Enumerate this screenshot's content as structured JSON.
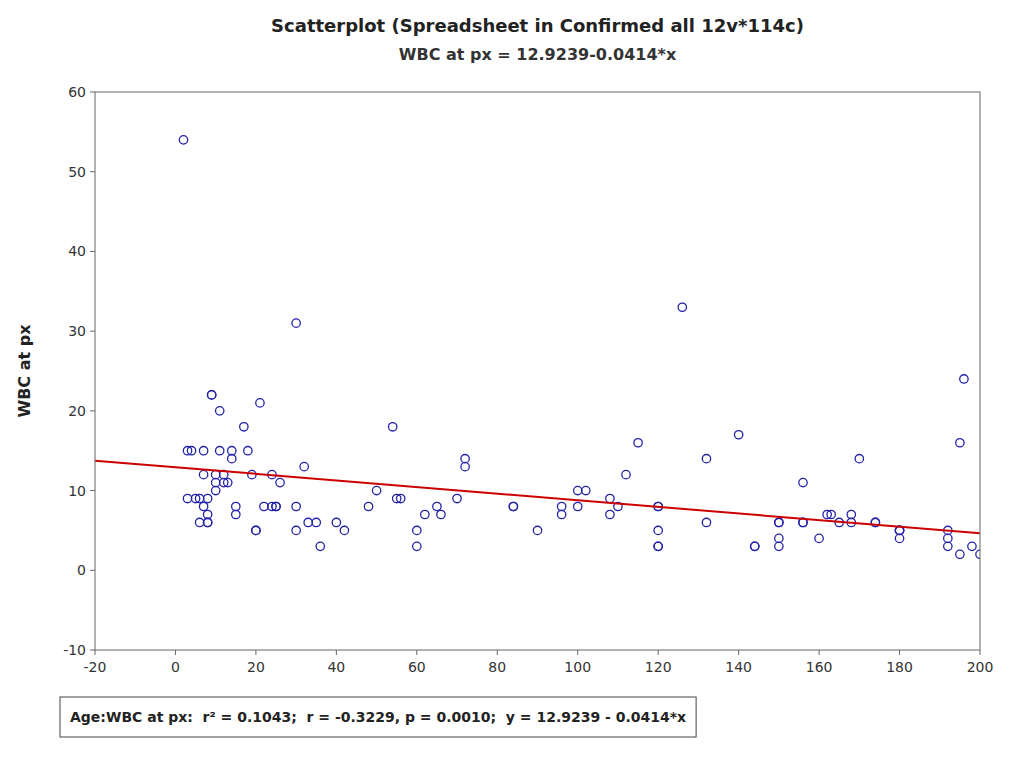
{
  "chart_data": {
    "type": "scatter",
    "title": "Scatterplot (Spreadsheet in Confirmed all 12v*114c)",
    "subtitle": "WBC at px = 12.9239-0.0414*x",
    "y_label": "WBC at px",
    "annotation": "Age:WBC at px:  r² = 0.1043;  r = -0.3229, p = 0.0010;  y = 12.9239 - 0.0414*x",
    "xlim": [
      -20,
      200
    ],
    "ylim": [
      -10,
      60
    ],
    "xticks": [
      -20,
      0,
      20,
      40,
      60,
      80,
      100,
      120,
      140,
      160,
      180,
      200
    ],
    "yticks": [
      -10,
      0,
      10,
      20,
      30,
      40,
      50,
      60
    ],
    "grid": false,
    "series": [
      {
        "type": "scatter",
        "color": "#2222aa",
        "marker": "circle",
        "x": [
          2,
          3,
          3,
          4,
          5,
          6,
          6,
          7,
          7,
          7,
          8,
          8,
          8,
          8,
          9,
          9,
          10,
          10,
          10,
          11,
          11,
          12,
          12,
          13,
          14,
          14,
          15,
          15,
          17,
          18,
          19,
          20,
          20,
          21,
          22,
          24,
          24,
          25,
          25,
          26,
          30,
          30,
          30,
          32,
          33,
          35,
          36,
          40,
          42,
          48,
          50,
          54,
          55,
          56,
          60,
          60,
          62,
          65,
          66,
          70,
          72,
          72,
          84,
          84,
          90,
          96,
          96,
          100,
          100,
          102,
          108,
          108,
          110,
          112,
          115,
          120,
          120,
          120,
          120,
          120,
          126,
          132,
          132,
          140,
          144,
          144,
          150,
          150,
          150,
          150,
          156,
          156,
          156,
          160,
          162,
          163,
          165,
          168,
          168,
          170,
          174,
          174,
          180,
          180,
          180,
          180,
          192,
          192,
          192,
          195,
          195,
          196,
          198,
          200
        ],
        "values": [
          54,
          9,
          15,
          15,
          9,
          9,
          6,
          15,
          12,
          8,
          9,
          7,
          6,
          6,
          22,
          22,
          12,
          10,
          11,
          20,
          15,
          12,
          11,
          11,
          15,
          14,
          8,
          7,
          18,
          15,
          12,
          5,
          5,
          21,
          8,
          8,
          12,
          8,
          8,
          11,
          31,
          8,
          5,
          13,
          6,
          6,
          3,
          6,
          5,
          8,
          10,
          18,
          9,
          9,
          3,
          5,
          7,
          8,
          7,
          9,
          14,
          13,
          8,
          8,
          5,
          7,
          8,
          10,
          8,
          10,
          7,
          9,
          8,
          12,
          16,
          8,
          8,
          5,
          3,
          3,
          33,
          14,
          6,
          17,
          3,
          3,
          3,
          4,
          6,
          6,
          11,
          6,
          6,
          4,
          7,
          7,
          6,
          6,
          7,
          14,
          6,
          6,
          5,
          4,
          5,
          5,
          3,
          4,
          5,
          2,
          16,
          24,
          3,
          2
        ]
      },
      {
        "type": "line",
        "color": "#cc0000",
        "line_style": "solid",
        "x": [
          -20,
          200
        ],
        "values": [
          13.7519,
          4.6439
        ]
      }
    ]
  }
}
